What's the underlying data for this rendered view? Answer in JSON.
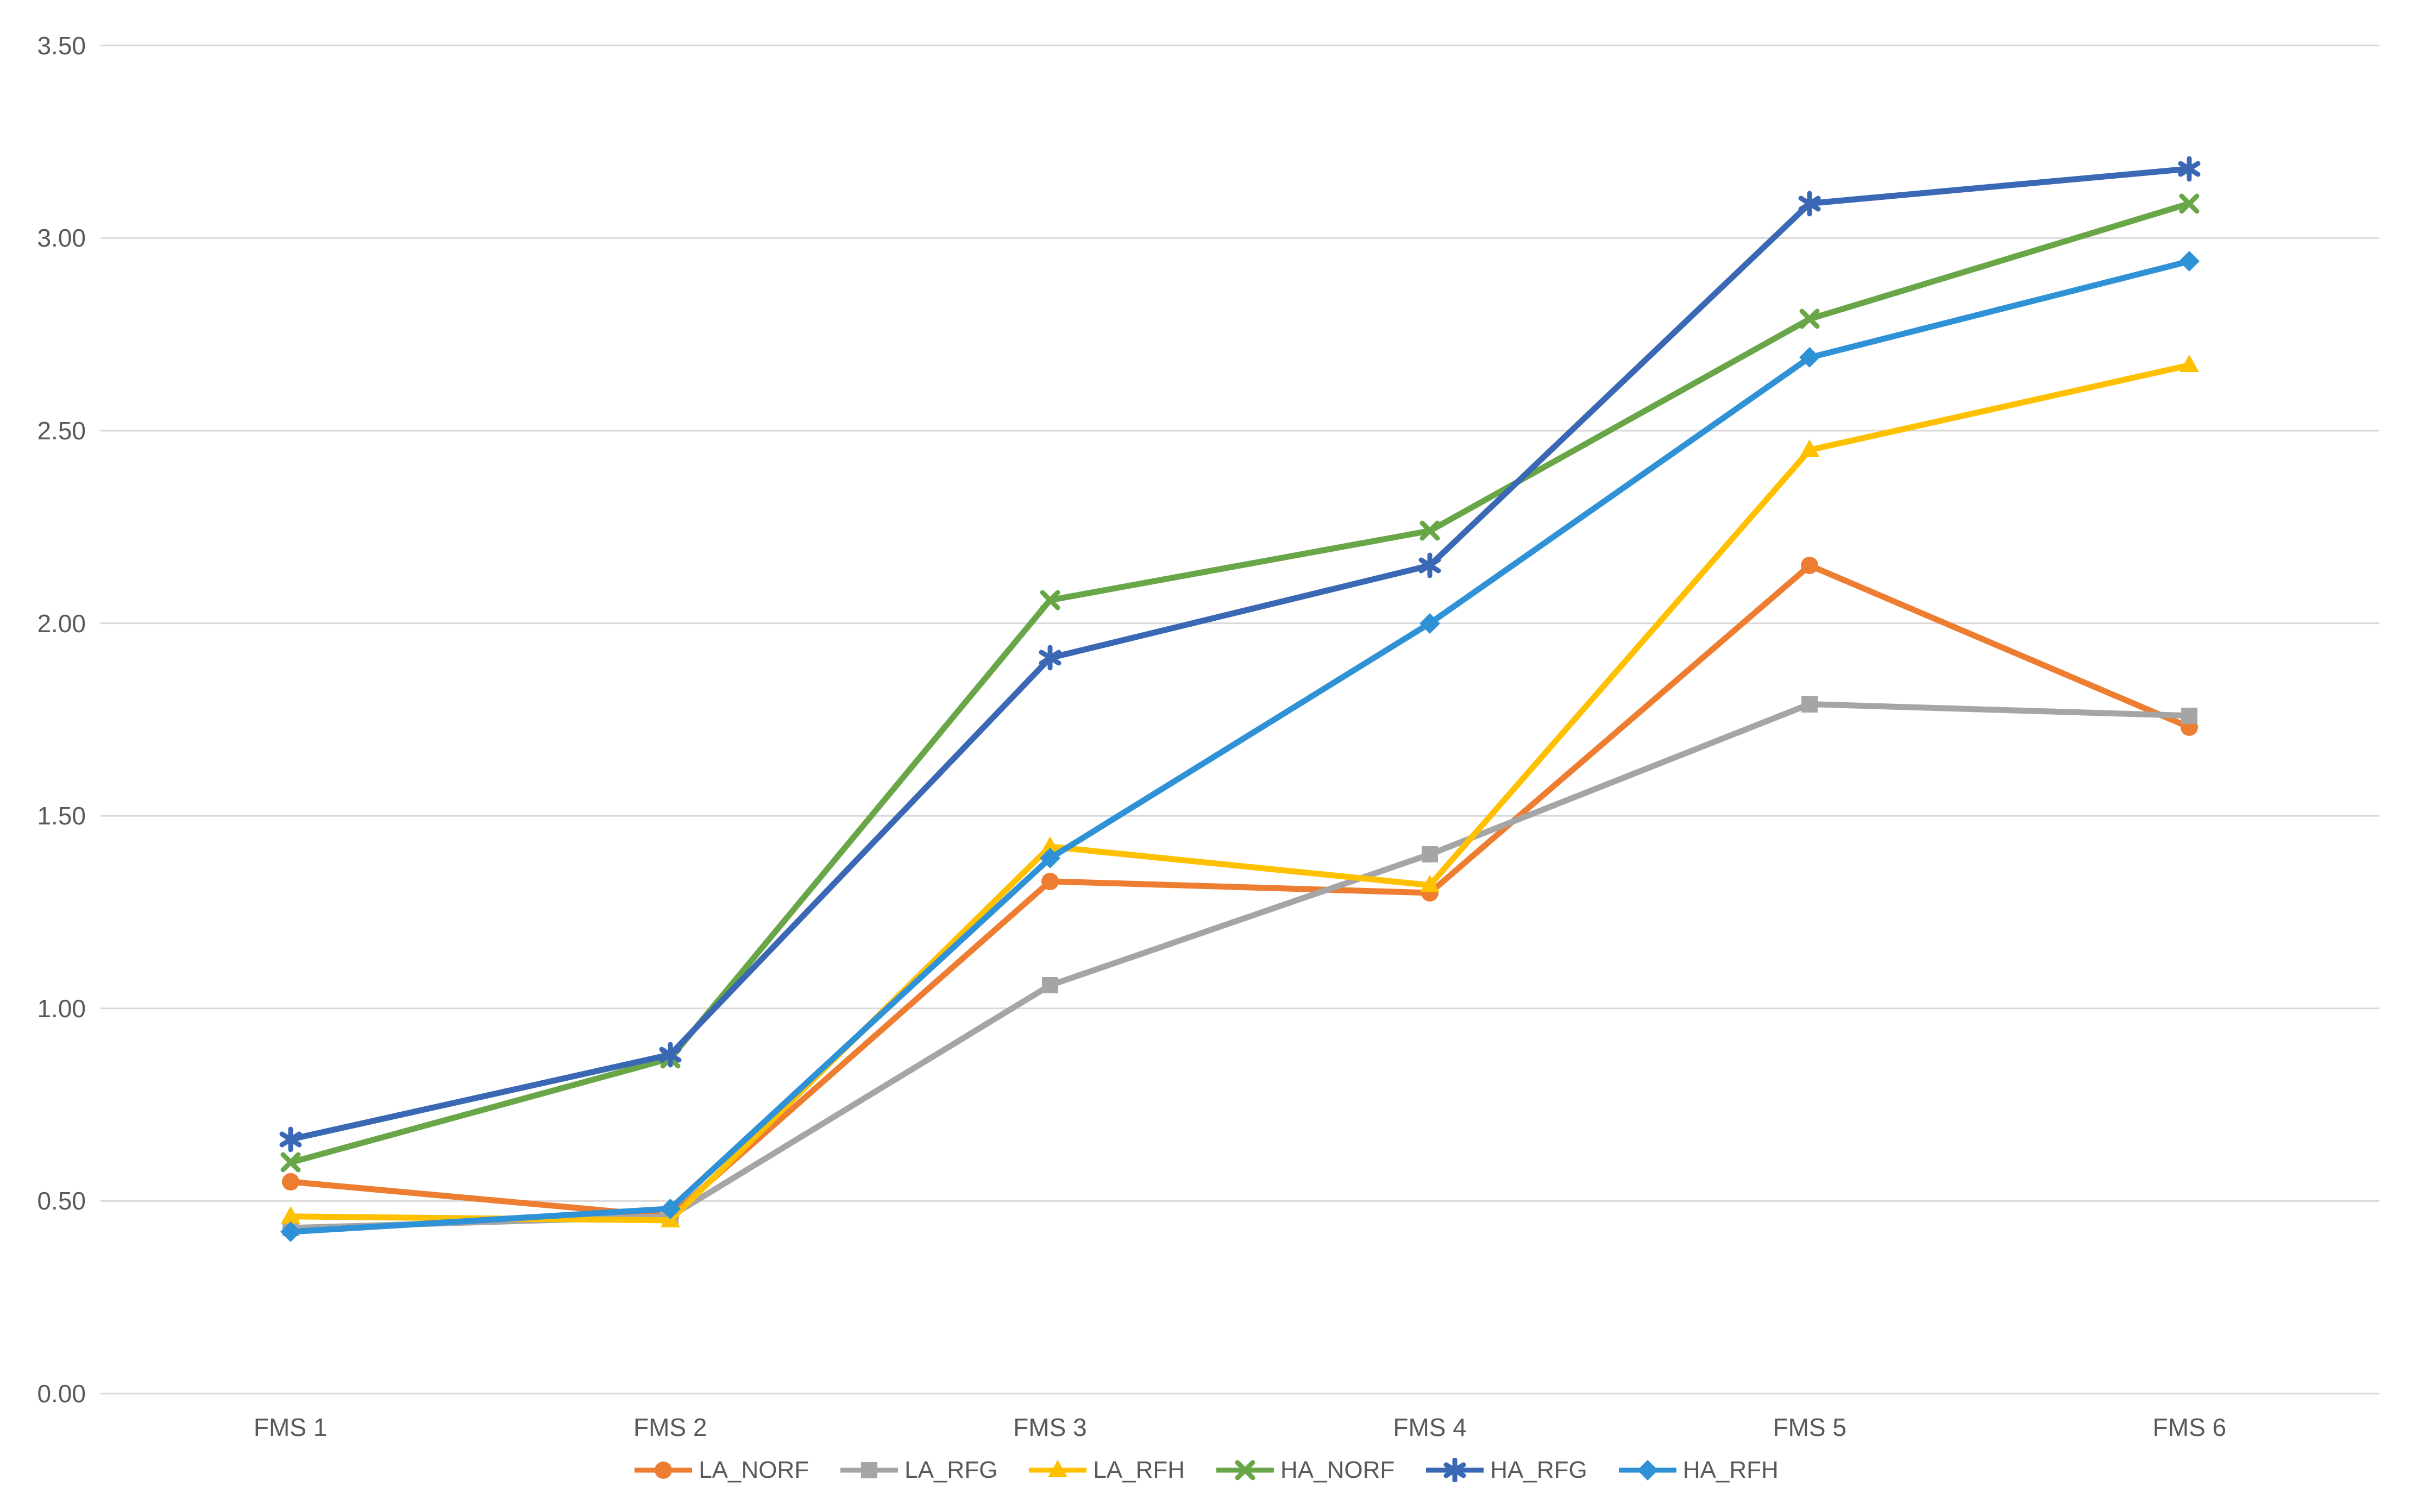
{
  "chart_data": {
    "type": "line",
    "title": "",
    "categories": [
      "FMS 1",
      "FMS 2",
      "FMS 3",
      "FMS 4",
      "FMS 5",
      "FMS 6"
    ],
    "series": [
      {
        "name": "LA_NORF",
        "color": "#ED7D31",
        "marker": "circle",
        "values": [
          0.55,
          0.46,
          1.33,
          1.3,
          2.15,
          1.73
        ]
      },
      {
        "name": "LA_RFG",
        "color": "#A5A5A5",
        "marker": "square",
        "values": [
          0.43,
          0.46,
          1.06,
          1.4,
          1.79,
          1.76
        ]
      },
      {
        "name": "LA_RFH",
        "color": "#FFC000",
        "marker": "triangle",
        "values": [
          0.46,
          0.45,
          1.42,
          1.32,
          2.45,
          2.67
        ]
      },
      {
        "name": "HA_NORF",
        "color": "#68A647",
        "marker": "x",
        "values": [
          0.6,
          0.87,
          2.06,
          2.24,
          2.79,
          3.09
        ]
      },
      {
        "name": "HA_RFG",
        "color": "#3A68B4",
        "marker": "asterisk",
        "values": [
          0.66,
          0.88,
          1.91,
          2.15,
          3.09,
          3.18
        ]
      },
      {
        "name": "HA_RFH",
        "color": "#3092D6",
        "marker": "diamond",
        "values": [
          0.42,
          0.48,
          1.39,
          2.0,
          2.69,
          2.94
        ]
      }
    ],
    "ylim": [
      0,
      3.5
    ],
    "ytick_step": 0.5,
    "ytick_labels": [
      "0.00",
      "0.50",
      "1.00",
      "1.50",
      "2.00",
      "2.50",
      "3.00",
      "3.50"
    ],
    "xlabel": "",
    "ylabel": "",
    "grid": true,
    "legend_position": "bottom"
  },
  "axis": {
    "grid_color": "#D9D9D9",
    "tick_color": "#595959"
  }
}
